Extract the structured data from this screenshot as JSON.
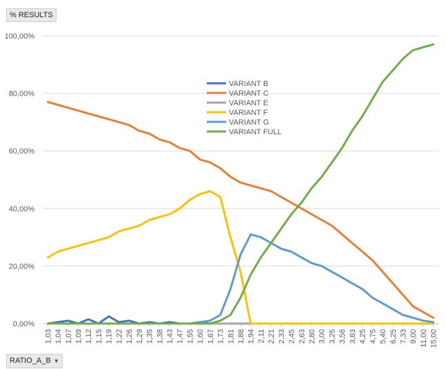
{
  "pivot": {
    "values_button": "% RESULTS",
    "axis_button": "RATIO_A_B"
  },
  "chart_data": {
    "type": "line",
    "title": "",
    "xlabel": "",
    "ylabel": "",
    "ylim": [
      0,
      100
    ],
    "yticks": [
      "0,00%",
      "20,00%",
      "40,00%",
      "60,00%",
      "80,00%",
      "100,00%"
    ],
    "x_tick_labels": [
      "1,03",
      "1,04",
      "1,07",
      "1,09",
      "1,12",
      "1,15",
      "1,19",
      "1,22",
      "1,26",
      "1,29",
      "1,35",
      "1,38",
      "1,43",
      "1,47",
      "1,55",
      "1,60",
      "1,67",
      "1,73",
      "1,81",
      "1,88",
      "1,94",
      "2,11",
      "2,21",
      "2,33",
      "2,45",
      "2,63",
      "2,80",
      "3,00",
      "3,25",
      "3,56",
      "3,83",
      "4,25",
      "4,75",
      "5,40",
      "6,25",
      "7,33",
      "9,00",
      "11,00",
      "15,00"
    ],
    "grid": true,
    "legend_position": "center",
    "series": [
      {
        "name": "VARIANT B",
        "color": "#4472c4",
        "values": [
          0,
          0.5,
          1,
          0,
          1.5,
          0,
          2.5,
          0.5,
          1,
          0,
          0.5,
          0,
          0.5,
          0,
          0,
          0.5,
          0,
          0,
          0,
          0,
          0,
          0,
          0,
          0,
          0,
          0,
          0,
          0,
          0,
          0,
          0,
          0,
          0,
          0,
          0,
          0,
          0,
          0,
          0
        ]
      },
      {
        "name": "VARIANT C",
        "color": "#ed7d31",
        "values": [
          77,
          76,
          75,
          74,
          73,
          72,
          71,
          70,
          69,
          67,
          66,
          64,
          63,
          61,
          60,
          57,
          56,
          54,
          51,
          49,
          48,
          47,
          46,
          44,
          42,
          40,
          38,
          36,
          34,
          31,
          28,
          25,
          22,
          18,
          14,
          10,
          6,
          4,
          2
        ]
      },
      {
        "name": "VARIANT E",
        "color": "#a5a5a5",
        "values": [
          0,
          0,
          0,
          0,
          0,
          0,
          0,
          0,
          0,
          0,
          0,
          0,
          0,
          0,
          0,
          0,
          0,
          0,
          0,
          0,
          0,
          0,
          0,
          0,
          0,
          0,
          0,
          0,
          0,
          0,
          0,
          0,
          0,
          0,
          0,
          0,
          0,
          0,
          0
        ]
      },
      {
        "name": "VARIANT F",
        "color": "#ffc000",
        "values": [
          23,
          25,
          26,
          27,
          28,
          29,
          30,
          32,
          33,
          34,
          36,
          37,
          38,
          40,
          43,
          45,
          46,
          44,
          30,
          18,
          0,
          0,
          0,
          0,
          0,
          0,
          0,
          0,
          0,
          0,
          0,
          0,
          0,
          0,
          0,
          0,
          0,
          0,
          0
        ]
      },
      {
        "name": "VARIANT G",
        "color": "#5b9bd5",
        "values": [
          0,
          0,
          0,
          0,
          0,
          0,
          0,
          0,
          0,
          0,
          0,
          0,
          0,
          0,
          0,
          0.5,
          1,
          3,
          12,
          24,
          31,
          30,
          28,
          26,
          25,
          23,
          21,
          20,
          18,
          16,
          14,
          12,
          9,
          7,
          5,
          3,
          2,
          1,
          0.5
        ]
      },
      {
        "name": "VARIANT FULL",
        "color": "#70ad47",
        "values": [
          0,
          0,
          0,
          0,
          0,
          0,
          0,
          0,
          0,
          0,
          0,
          0,
          0,
          0,
          0,
          0,
          0,
          1,
          3,
          9,
          17,
          23,
          28,
          33,
          38,
          42,
          47,
          51,
          56,
          61,
          67,
          72,
          78,
          84,
          88,
          92,
          95,
          96,
          97
        ]
      }
    ]
  }
}
